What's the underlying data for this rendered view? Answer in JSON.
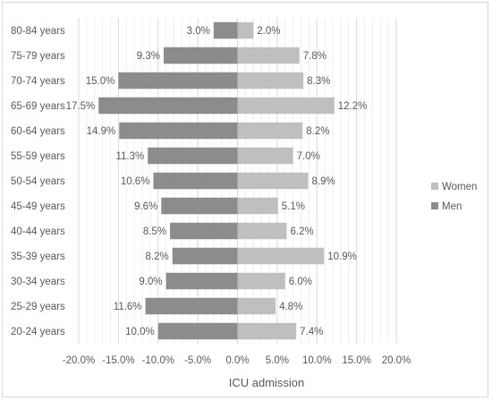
{
  "chart_data": {
    "type": "bar",
    "orientation": "horizontal",
    "style": "population-pyramid",
    "categories": [
      "80-84 years",
      "75-79 years",
      "70-74 years",
      "65-69 years",
      "60-64 years",
      "55-59 years",
      "50-54 years",
      "45-49 years",
      "40-44 years",
      "35-39 years",
      "30-34 years",
      "25-29 years",
      "20-24 years"
    ],
    "series": [
      {
        "name": "Women",
        "color": "#bfbfbf",
        "values": [
          2.0,
          7.8,
          8.3,
          12.2,
          8.2,
          7.0,
          8.9,
          5.1,
          6.2,
          10.9,
          6.0,
          4.8,
          7.4
        ],
        "labels": [
          "2.0%",
          "7.8%",
          "8.3%",
          "12.2%",
          "8.2%",
          "7.0%",
          "8.9%",
          "5.1%",
          "6.2%",
          "10.9%",
          "6.0%",
          "4.8%",
          "7.4%"
        ]
      },
      {
        "name": "Men",
        "color": "#8c8c8c",
        "values": [
          -3.0,
          -9.3,
          -15.0,
          -17.5,
          -14.9,
          -11.3,
          -10.6,
          -9.6,
          -8.5,
          -8.2,
          -9.0,
          -11.6,
          -10.0
        ],
        "labels": [
          "3.0%",
          "9.3%",
          "15.0%",
          "17.5%",
          "14.9%",
          "11.3%",
          "10.6%",
          "9.6%",
          "8.5%",
          "8.2%",
          "9.0%",
          "11.6%",
          "10.0%"
        ]
      }
    ],
    "xlim": [
      -20,
      20
    ],
    "xticks": [
      -20,
      -15,
      -10,
      -5,
      0,
      5,
      10,
      15,
      20
    ],
    "xtick_labels": [
      "-20.0%",
      "-15.0%",
      "-10.0%",
      "-5.0%",
      "0.0%",
      "5.0%",
      "10.0%",
      "15.0%",
      "20.0%"
    ],
    "xlabel": "ICU admission",
    "ylabel": "",
    "title": "",
    "grid": "vertical",
    "legend_position": "right"
  }
}
